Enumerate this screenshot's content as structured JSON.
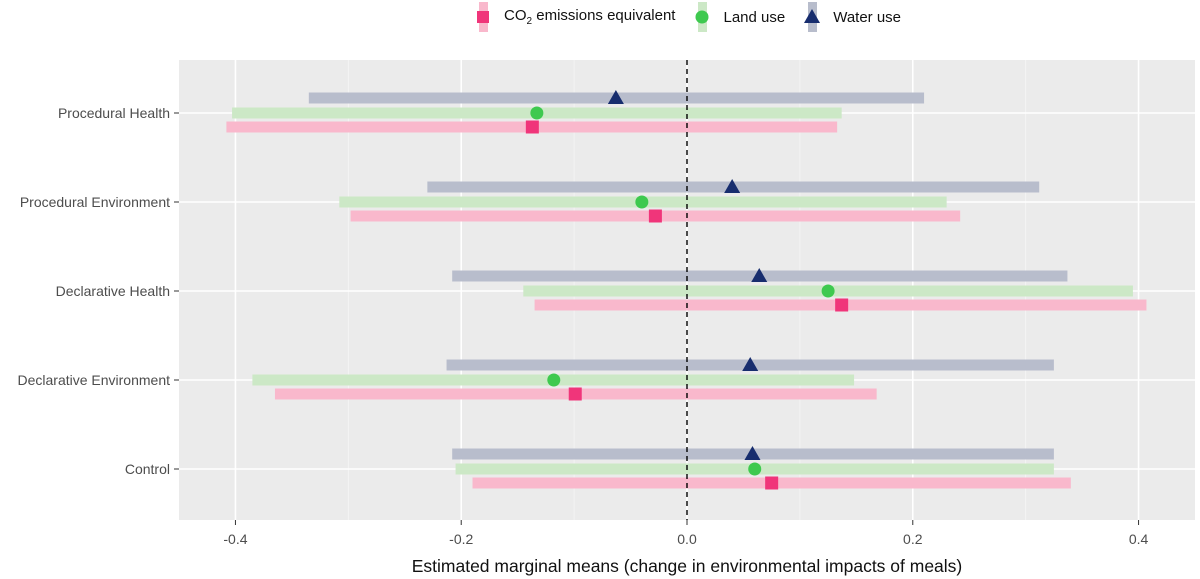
{
  "chart_data": {
    "type": "scatter",
    "xlabel": "Estimated marginal means (change in environmental impacts of meals)",
    "ylabel": "",
    "title": "",
    "xlim": [
      -0.45,
      0.45
    ],
    "x_ticks": [
      -0.4,
      -0.2,
      0.0,
      0.2,
      0.4
    ],
    "x_tick_labels": [
      "-0.4",
      "-0.2",
      "0.0",
      "0.2",
      "0.4"
    ],
    "reference_line_x": 0,
    "grid": true,
    "legend_position": "top",
    "categories": [
      "Procedural Health",
      "Procedural Environment",
      "Declarative Health",
      "Declarative Environment",
      "Control"
    ],
    "series": [
      {
        "name_prefix": "CO",
        "name_subscript": "2",
        "name_suffix": " emissions equivalent",
        "marker": "square",
        "color": "#f0357a",
        "band_color": "#f9b8cc",
        "estimates": [
          -0.137,
          -0.028,
          0.137,
          -0.099,
          0.075
        ],
        "lower": [
          -0.408,
          -0.298,
          -0.135,
          -0.365,
          -0.19
        ],
        "upper": [
          0.133,
          0.242,
          0.407,
          0.168,
          0.34
        ]
      },
      {
        "name": "Land use",
        "marker": "circle",
        "color": "#3ec94f",
        "band_color": "#cce8c6",
        "estimates": [
          -0.133,
          -0.04,
          0.125,
          -0.118,
          0.06
        ],
        "lower": [
          -0.403,
          -0.308,
          -0.145,
          -0.385,
          -0.205
        ],
        "upper": [
          0.137,
          0.23,
          0.395,
          0.148,
          0.325
        ]
      },
      {
        "name": "Water use",
        "marker": "triangle",
        "color": "#172d6e",
        "band_color": "#b8bdcc",
        "estimates": [
          -0.063,
          0.04,
          0.064,
          0.056,
          0.058
        ],
        "lower": [
          -0.335,
          -0.23,
          -0.208,
          -0.213,
          -0.208
        ],
        "upper": [
          0.21,
          0.312,
          0.337,
          0.325,
          0.325
        ]
      }
    ]
  }
}
